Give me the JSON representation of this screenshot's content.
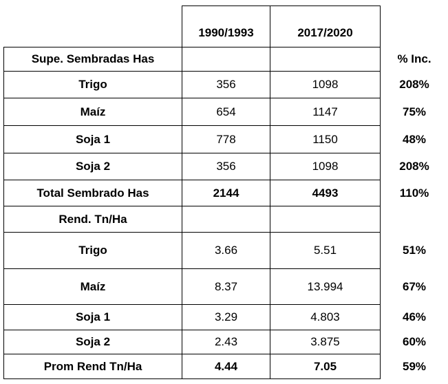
{
  "table": {
    "header": [
      "1990/1993",
      "2017/2020"
    ],
    "rows": [
      {
        "label": "Supe. Sembradas Has",
        "pct": "% Inc."
      },
      {
        "label": "Trigo",
        "v1": "356",
        "v2": "1098",
        "pct": "208%"
      },
      {
        "label": "Maíz",
        "v1": "654",
        "v2": "1147",
        "pct": "75%"
      },
      {
        "label": "Soja 1",
        "v1": "778",
        "v2": "1150",
        "pct": "48%"
      },
      {
        "label": "Soja 2",
        "v1": "356",
        "v2": "1098",
        "pct": "208%"
      },
      {
        "label": "Total Sembrado Has",
        "v1": "2144",
        "v2": "4493",
        "pct": "110%"
      },
      {
        "label": "Rend. Tn/Ha"
      },
      {
        "label": "Trigo",
        "v1": "3.66",
        "v2": "5.51",
        "pct": "51%"
      },
      {
        "label": "Maíz",
        "v1": "8.37",
        "v2": "13.994",
        "pct": "67%"
      },
      {
        "label": "Soja 1",
        "v1": "3.29",
        "v2": "4.803",
        "pct": "46%"
      },
      {
        "label": "Soja 2",
        "v1": "2.43",
        "v2": "3.875",
        "pct": "60%"
      },
      {
        "label": "Prom Rend Tn/Ha",
        "v1": "4.44",
        "v2": "7.05",
        "pct": "59%"
      }
    ]
  }
}
